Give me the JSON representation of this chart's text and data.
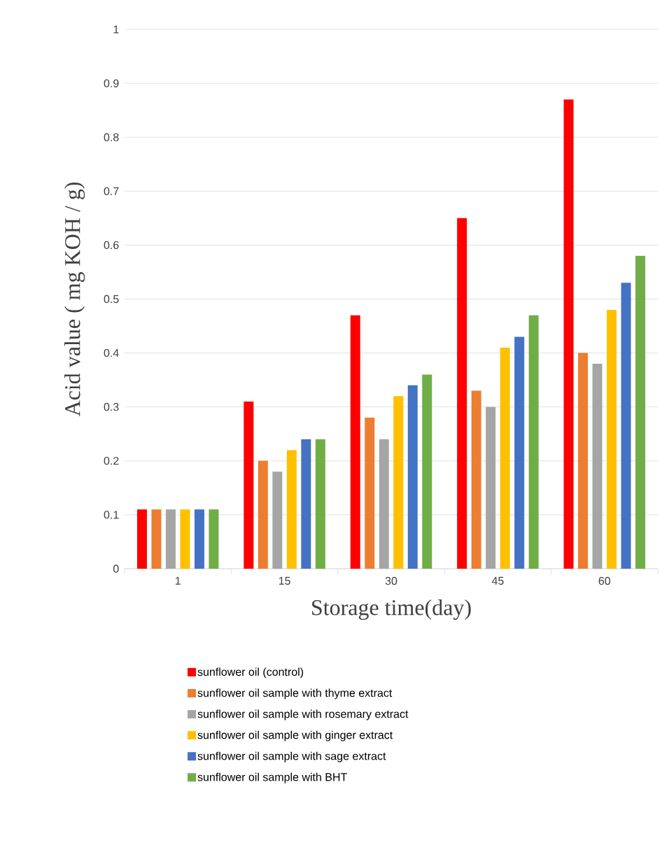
{
  "chart_data": {
    "type": "bar",
    "xlabel": "Storage time(day)",
    "ylabel": "Acid value ( mg KOH / g)",
    "categories": [
      "1",
      "15",
      "30",
      "45",
      "60"
    ],
    "series": [
      {
        "name": "sunflower oil (control)",
        "color": "#ff0000",
        "values": [
          0.11,
          0.31,
          0.47,
          0.65,
          0.87
        ]
      },
      {
        "name": "sunflower oil sample with thyme extract",
        "color": "#ed7d31",
        "values": [
          0.11,
          0.2,
          0.28,
          0.33,
          0.4
        ]
      },
      {
        "name": "sunflower oil sample with rosemary extract",
        "color": "#a5a5a5",
        "values": [
          0.11,
          0.18,
          0.24,
          0.3,
          0.38
        ]
      },
      {
        "name": "sunflower oil sample with ginger extract",
        "color": "#ffc000",
        "values": [
          0.11,
          0.22,
          0.32,
          0.41,
          0.48
        ]
      },
      {
        "name": "sunflower oil sample with sage extract",
        "color": "#4472c4",
        "values": [
          0.11,
          0.24,
          0.34,
          0.43,
          0.53
        ]
      },
      {
        "name": "sunflower oil sample with BHT",
        "color": "#70ad47",
        "values": [
          0.11,
          0.24,
          0.36,
          0.47,
          0.58
        ]
      }
    ],
    "ylim": [
      0,
      1
    ],
    "yticks": [
      0,
      0.1,
      0.2,
      0.3,
      0.4,
      0.5,
      0.6,
      0.7,
      0.8,
      0.9,
      1
    ],
    "grid": "y",
    "legend": "bottom"
  }
}
